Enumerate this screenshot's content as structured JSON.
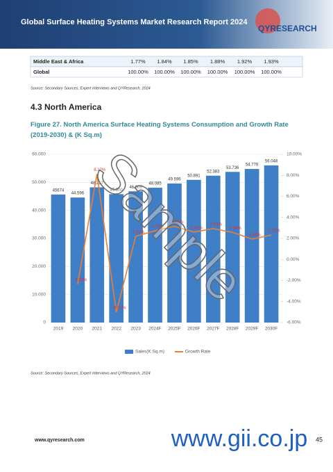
{
  "header": {
    "title": "Global Surface Heating Systems Market Research Report 2024",
    "logo": "QYRESEARCH"
  },
  "table": {
    "rows": [
      [
        "Middle East & Africa",
        "1.77%",
        "1.84%",
        "1.85%",
        "1.88%",
        "1.92%",
        "1.93%"
      ],
      [
        "Global",
        "100.00%",
        "100.00%",
        "100.00%",
        "100.00%",
        "100.00%",
        "100.00%"
      ]
    ]
  },
  "table_source": "Source: Secondary Sources, Expert Interviews and QYResearch, 2024",
  "section": "4.3  North America",
  "caption": "Figure 27.   North America Surface Heating Systems Consumption and Growth Rate (2019-2030) & (K Sq.m)",
  "chart_data": {
    "type": "bar",
    "categories": [
      "2019",
      "2020",
      "2021",
      "2022",
      "2023",
      "2024F",
      "2025F",
      "2026F",
      "2027F",
      "2028F",
      "2029F",
      "2030F"
    ],
    "series": [
      {
        "name": "Sales(K Sq.m)",
        "color": "#3f7fc7",
        "values": [
          45674,
          44596,
          48217,
          45800,
          46806,
          48085,
          49596,
          50891,
          52383,
          53736,
          54776,
          56048
        ],
        "value_labels": [
          "45674",
          "44.596",
          "48.217",
          "45.800",
          "46.806",
          "48.085",
          "49.596",
          "50.891",
          "52.383",
          "53.736",
          "54.776",
          "56.048"
        ]
      },
      {
        "name": "Growth Rate",
        "color": "#ed7d31",
        "axis": "y2",
        "type": "line",
        "values": [
          null,
          -2.36,
          8.12,
          -5.01,
          2.2,
          2.73,
          3.15,
          2.61,
          2.93,
          2.58,
          1.94,
          2.32
        ],
        "value_labels": [
          null,
          "-2.36%",
          "8.12%",
          "-5.01%",
          "2.20%",
          "2.73%",
          "3.15%",
          "2.61%",
          "2.93%",
          "2.58%",
          "1.94%",
          "2.32%"
        ]
      }
    ],
    "ylim": [
      0,
      60000
    ],
    "yticks": [
      0,
      {
        "value": 10000,
        "label": "10.000"
      },
      {
        "value": 20000,
        "label": "20.000"
      },
      {
        "value": 30000,
        "label": "30.000"
      },
      {
        "value": 40000,
        "label": "40.000"
      },
      {
        "value": 50000,
        "label": "50.000"
      },
      {
        "value": 60000,
        "label": "60.000"
      }
    ],
    "y2lim": [
      -6,
      10
    ],
    "y2ticks": [
      {
        "value": -6,
        "label": "-6.00%"
      },
      {
        "value": -4,
        "label": "-4.00%"
      },
      {
        "value": -2,
        "label": "-2.00%"
      },
      {
        "value": 0,
        "label": "0.00%"
      },
      {
        "value": 2,
        "label": "2.00%"
      },
      {
        "value": 4,
        "label": "4.00%"
      },
      {
        "value": 6,
        "label": "6.00%"
      },
      {
        "value": 8,
        "label": "8.00%"
      },
      {
        "value": 10,
        "label": "10.00%"
      }
    ],
    "grid": true,
    "legend": "bottom"
  },
  "chart_source": "Source: Secondary Sources, Expert Interviews and QYResearch, 2024",
  "footer": {
    "url": "www.qyresearch.com",
    "page": "45"
  },
  "watermarks": [
    "Sample",
    "www.gii.co.jp"
  ]
}
